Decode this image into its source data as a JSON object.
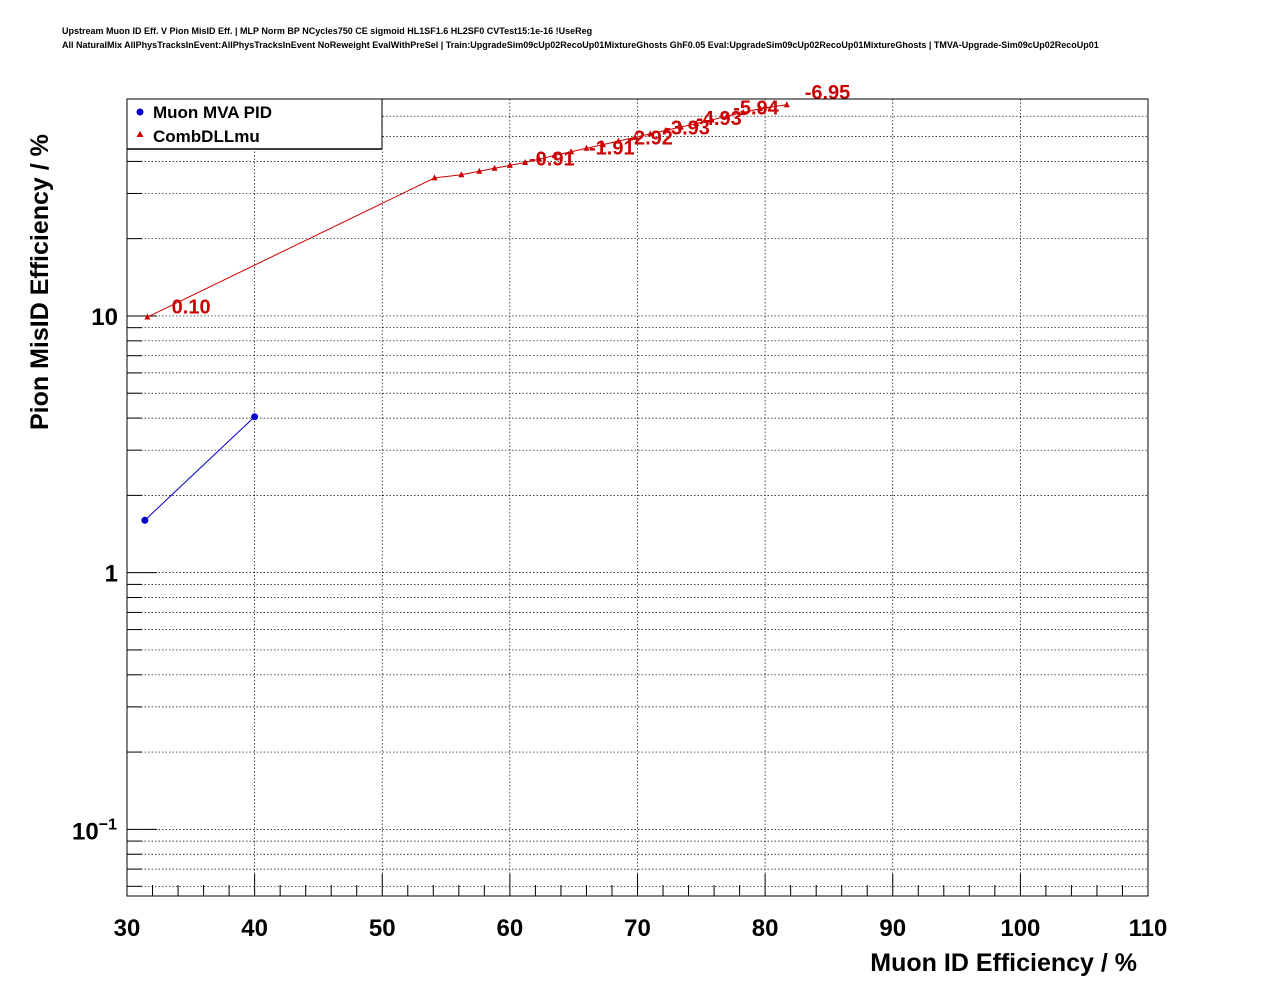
{
  "title": {
    "line1": "Upstream Muon ID Eff. V Pion MisID Eff. | MLP Norm BP NCycles750 CE sigmoid HL1SF1.6 HL2SF0 CVTest15:1e-16 !UseReg",
    "line2": "All NaturalMix AllPhysTracksInEvent:AllPhysTracksInEvent NoReweight EvalWithPreSel | Train:UpgradeSim09cUp02RecoUp01MixtureGhosts GhF0.05 Eval:UpgradeSim09cUp02RecoUp01MixtureGhosts | TMVA-Upgrade-Sim09cUp02RecoUp01"
  },
  "chart_data": {
    "type": "line",
    "xlabel": "Muon ID Efficiency / %",
    "ylabel": "Pion MisID Efficiency / %",
    "xlim": [
      30,
      110
    ],
    "ylim": [
      0.055,
      70
    ],
    "yscale": "log",
    "grid": true,
    "legend_placement": "top-left",
    "x_ticks": [
      "30",
      "40",
      "50",
      "60",
      "70",
      "80",
      "90",
      "100",
      "110"
    ],
    "y_ticks": [
      {
        "value": 0.1,
        "base": "10",
        "exp": "−1"
      },
      {
        "value": 1,
        "label": "1"
      },
      {
        "value": 10,
        "label": "10"
      }
    ],
    "series": [
      {
        "name": "Muon MVA PID",
        "color": "#0000cc",
        "marker": "circle",
        "x": [
          31.4,
          40.0
        ],
        "y": [
          1.6,
          4.05
        ]
      },
      {
        "name": "CombDLLmu",
        "color": "#cc0000",
        "marker": "triangle",
        "x": [
          31.6,
          54.1,
          56.2,
          57.6,
          58.8,
          60.0,
          61.2,
          62.3,
          63.5,
          64.8,
          66.0,
          67.3,
          68.5,
          69.8,
          71.0,
          72.2,
          73.4,
          74.6,
          75.8,
          77.0,
          78.3,
          79.6,
          81.7
        ],
        "y": [
          9.9,
          34.5,
          35.5,
          36.6,
          37.6,
          38.6,
          39.6,
          40.8,
          42.2,
          43.6,
          45.0,
          46.5,
          48.0,
          49.6,
          51.2,
          52.8,
          54.4,
          56.2,
          58.0,
          60.0,
          62.0,
          64.2,
          66.5
        ]
      }
    ],
    "annotations": [
      {
        "text": "0.10",
        "x": 33.5,
        "y": 10.2
      },
      {
        "text": "-0.91",
        "x": 61.5,
        "y": 38.5
      },
      {
        "text": "-1.91",
        "x": 66.2,
        "y": 42.5
      },
      {
        "text": "-2.92",
        "x": 69.2,
        "y": 46.5
      },
      {
        "text": "-3.93",
        "x": 72.1,
        "y": 51.0
      },
      {
        "text": "-4.93",
        "x": 74.6,
        "y": 55.5
      },
      {
        "text": "-5.94",
        "x": 77.5,
        "y": 61.0
      },
      {
        "text": "-6.95",
        "x": 83.1,
        "y": 70.0
      }
    ]
  }
}
